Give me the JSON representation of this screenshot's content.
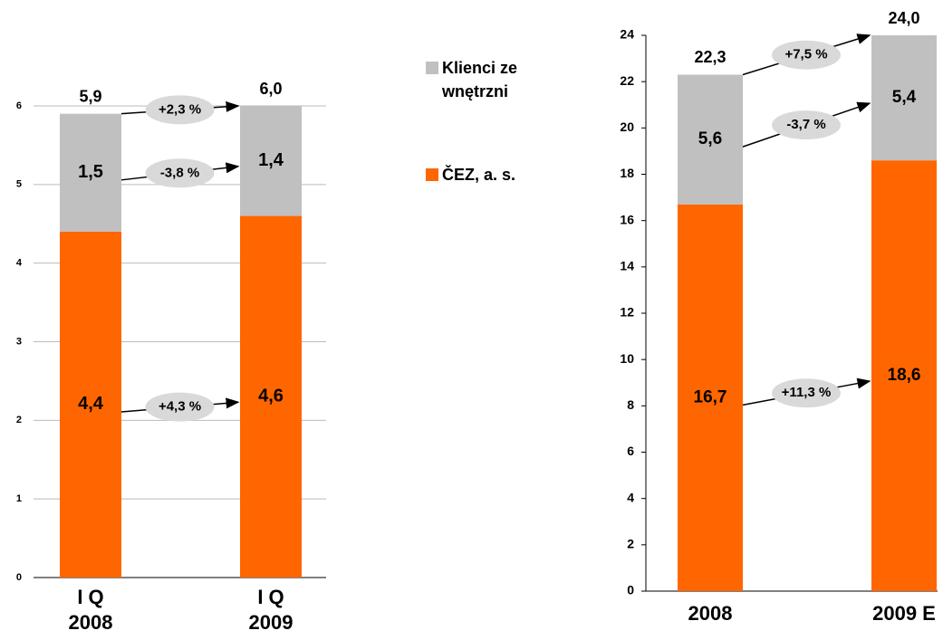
{
  "chart_data": [
    {
      "type": "stacked_bar",
      "categories": [
        "I Q 2008",
        "I Q 2009"
      ],
      "series": [
        {
          "name": "ČEZ, a. s.",
          "color": "#ff6600",
          "values": [
            4.4,
            4.6
          ],
          "value_labels": [
            "4,4",
            "4,6"
          ],
          "change_label": "+4,3 %"
        },
        {
          "name": "Klienci zewnętrzni",
          "color": "#c0c0c0",
          "values": [
            1.5,
            1.4
          ],
          "value_labels": [
            "1,5",
            "1,4"
          ],
          "change_label": "-3,8 %"
        }
      ],
      "totals": [
        5.9,
        6.0
      ],
      "totals_labels": [
        "5,9",
        "6,0"
      ],
      "total_change_label": "+2,3 %",
      "ylim": [
        0,
        6
      ],
      "yticks": [
        0,
        1,
        2,
        3,
        4,
        5,
        6
      ],
      "grid": true
    },
    {
      "type": "stacked_bar",
      "categories": [
        "2008",
        "2009 E"
      ],
      "series": [
        {
          "color": "#ff6600",
          "values": [
            16.7,
            18.6
          ],
          "value_labels": [
            "16,7",
            "18,6"
          ],
          "change_label": "+11,3 %"
        },
        {
          "color": "#c0c0c0",
          "values": [
            5.6,
            5.4
          ],
          "value_labels": [
            "5,6",
            "5,4"
          ],
          "change_label": "-3,7 %"
        }
      ],
      "totals": [
        22.3,
        24.0
      ],
      "totals_labels": [
        "22,3",
        "24,0"
      ],
      "total_change_label": "+7,5 %",
      "ylim": [
        0,
        24
      ],
      "yticks": [
        0,
        2,
        4,
        6,
        8,
        10,
        12,
        14,
        16,
        18,
        20,
        22,
        24
      ],
      "grid": false
    }
  ]
}
